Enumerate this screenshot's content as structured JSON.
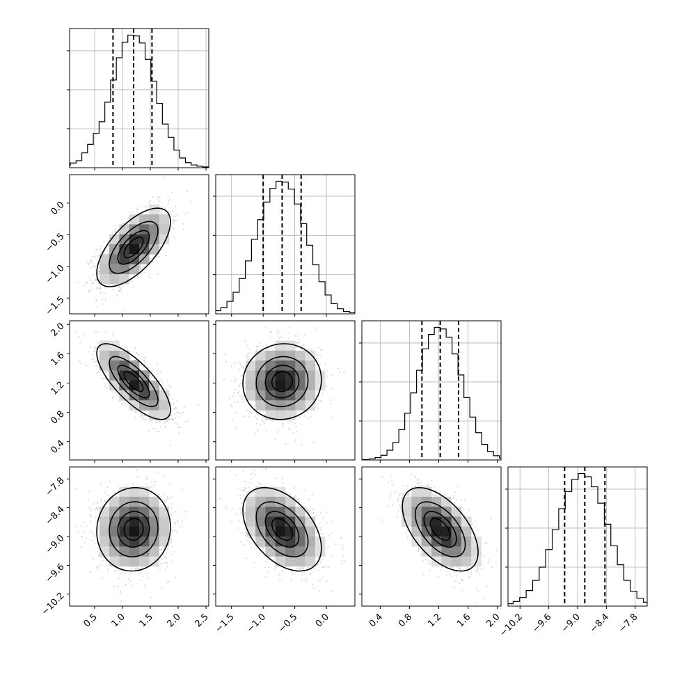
{
  "chart_data": {
    "type": "corner",
    "parameters": [
      {
        "index": 0,
        "range": [
          0.05,
          2.55
        ],
        "x_ticks": [
          0.5,
          1.0,
          1.5,
          2.0,
          2.5
        ],
        "x_tick_labels": [
          "0.5",
          "1.0",
          "1.5",
          "2.0",
          "2.5"
        ],
        "y_ticks": [],
        "y_tick_labels": [],
        "mean": 1.2,
        "std": 0.32,
        "quantiles": [
          0.83,
          1.2,
          1.53
        ],
        "hist_counts": [
          2,
          5,
          12,
          18,
          38,
          60,
          88,
          118,
          168,
          225,
          282,
          322,
          340,
          338,
          320,
          278,
          222,
          165,
          112,
          78,
          45,
          25,
          13,
          7,
          4,
          2
        ]
      },
      {
        "index": 1,
        "range": [
          -1.75,
          0.45
        ],
        "x_ticks": [
          -1.5,
          -1.0,
          -0.5,
          0.0
        ],
        "x_tick_labels": [
          "−1.5",
          "−1.0",
          "−0.5",
          "0.0"
        ],
        "y_ticks": [
          0.0,
          -0.5,
          -1.0,
          -1.5
        ],
        "y_tick_labels": [
          "0.0",
          "−0.5",
          "−1.0",
          "−1.5"
        ],
        "mean": -0.7,
        "std": 0.3,
        "quantiles": [
          -1.0,
          -0.7,
          -0.4
        ],
        "hist_counts": [
          2,
          4,
          8,
          16,
          32,
          55,
          90,
          135,
          190,
          240,
          285,
          320,
          338,
          336,
          318,
          280,
          230,
          175,
          125,
          82,
          48,
          26,
          13,
          6,
          3,
          1
        ]
      },
      {
        "index": 2,
        "range": [
          0.15,
          2.05
        ],
        "x_ticks": [
          0.4,
          0.8,
          1.2,
          1.6,
          2.0
        ],
        "x_tick_labels": [
          "0.4",
          "0.8",
          "1.2",
          "1.6",
          "2.0"
        ],
        "y_ticks": [
          2.0,
          1.6,
          1.2,
          0.8,
          0.4
        ],
        "y_tick_labels": [
          "2.0",
          "1.6",
          "1.2",
          "0.8",
          "0.4"
        ],
        "mean": 1.22,
        "std": 0.25,
        "quantiles": [
          0.97,
          1.22,
          1.47
        ],
        "hist_counts": [
          1,
          3,
          6,
          12,
          25,
          45,
          78,
          120,
          172,
          230,
          285,
          322,
          340,
          336,
          315,
          272,
          218,
          160,
          110,
          70,
          40,
          22,
          11,
          5,
          2,
          1
        ]
      },
      {
        "index": 3,
        "range": [
          -10.45,
          -7.55
        ],
        "x_ticks": [
          -10.2,
          -9.6,
          -9.0,
          -8.4,
          -7.8
        ],
        "x_tick_labels": [
          "−10.2",
          "−9.6",
          "−9.0",
          "−8.4",
          "−7.8"
        ],
        "y_ticks": [
          -7.8,
          -8.4,
          -9.0,
          -9.6,
          -10.2
        ],
        "y_tick_labels": [
          "−7.8",
          "−8.4",
          "−9.0",
          "−9.6",
          "−10.2"
        ],
        "mean": -8.85,
        "std": 0.42,
        "quantiles": [
          -9.27,
          -8.85,
          -8.43
        ],
        "hist_counts": [
          3,
          6,
          12,
          22,
          40,
          66,
          100,
          145,
          196,
          250,
          294,
          325,
          340,
          332,
          306,
          264,
          210,
          155,
          106,
          66,
          38,
          20,
          10,
          5,
          2,
          1
        ]
      }
    ],
    "correlations": [
      {
        "x": 0,
        "y": 1,
        "rho": 0.65
      },
      {
        "x": 0,
        "y": 2,
        "rho": -0.75
      },
      {
        "x": 1,
        "y": 2,
        "rho": 0.05
      },
      {
        "x": 0,
        "y": 3,
        "rho": 0.05
      },
      {
        "x": 1,
        "y": 3,
        "rho": -0.45
      },
      {
        "x": 2,
        "y": 3,
        "rho": -0.55
      }
    ],
    "contour_sigma_levels": [
      0.5,
      1.0,
      1.5,
      2.0
    ],
    "title": "",
    "grid": true
  }
}
